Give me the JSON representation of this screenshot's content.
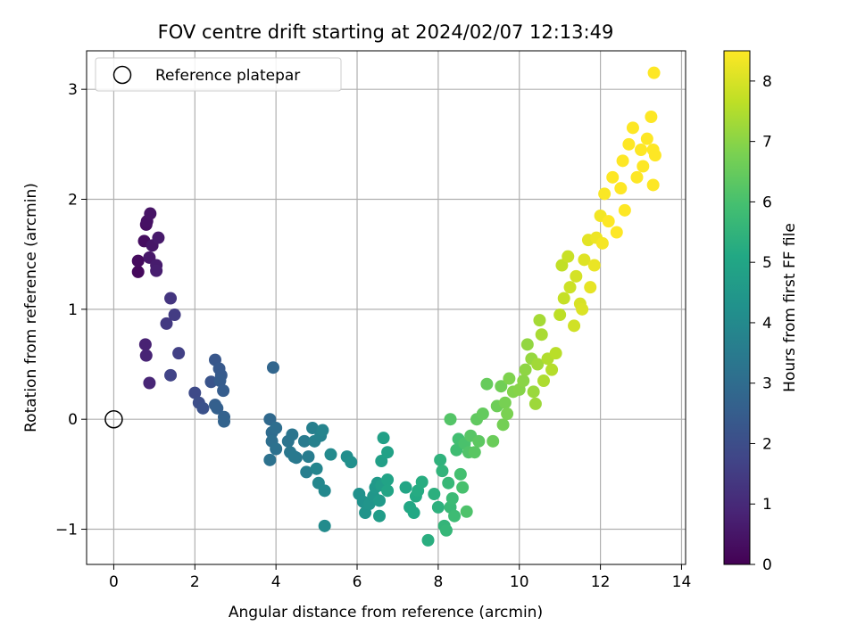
{
  "chart_data": {
    "type": "scatter",
    "title": "FOV centre drift starting at 2024/02/07 12:13:49",
    "xlabel": "Angular distance from reference (arcmin)",
    "ylabel": "Rotation from reference (arcmin)",
    "xlim": [
      -0.67,
      14.1
    ],
    "ylim": [
      -1.32,
      3.35
    ],
    "xticks": [
      0,
      2,
      4,
      6,
      8,
      10,
      12,
      14
    ],
    "yticks": [
      -1,
      0,
      1,
      2,
      3
    ],
    "xtick_labels": [
      "0",
      "2",
      "4",
      "6",
      "8",
      "10",
      "12",
      "14"
    ],
    "ytick_labels": [
      "−1",
      "0",
      "1",
      "2",
      "3"
    ],
    "grid": true,
    "legend": {
      "position": "top-left",
      "entries": [
        "Reference platepar"
      ]
    },
    "colorbar": {
      "label": "Hours from first FF file",
      "range": [
        0,
        8.5
      ],
      "ticks": [
        0,
        1,
        2,
        3,
        4,
        5,
        6,
        7,
        8
      ],
      "tick_labels": [
        "0",
        "1",
        "2",
        "3",
        "4",
        "5",
        "6",
        "7",
        "8"
      ],
      "colormap": "viridis"
    },
    "reference_point": {
      "x": 0,
      "y": 0
    },
    "series": [
      {
        "points": [
          [
            0.6,
            1.34,
            0.2
          ],
          [
            0.6,
            1.44,
            0.25
          ],
          [
            0.75,
            1.62,
            0.3
          ],
          [
            0.8,
            1.77,
            0.35
          ],
          [
            0.82,
            1.8,
            0.4
          ],
          [
            0.9,
            1.87,
            0.45
          ],
          [
            0.95,
            1.58,
            0.5
          ],
          [
            0.88,
            1.47,
            0.55
          ],
          [
            1.1,
            1.65,
            0.6
          ],
          [
            1.05,
            1.4,
            0.65
          ],
          [
            1.05,
            1.35,
            0.7
          ],
          [
            0.78,
            0.68,
            0.8
          ],
          [
            0.8,
            0.58,
            0.85
          ],
          [
            0.88,
            0.33,
            0.9
          ],
          [
            1.4,
            1.1,
            1.3
          ],
          [
            1.3,
            0.87,
            1.4
          ],
          [
            1.5,
            0.95,
            1.5
          ],
          [
            1.6,
            0.6,
            1.6
          ],
          [
            1.4,
            0.4,
            1.7
          ],
          [
            2.0,
            0.24,
            1.9
          ],
          [
            2.1,
            0.15,
            2.0
          ],
          [
            2.2,
            0.1,
            2.1
          ],
          [
            2.4,
            0.34,
            2.2
          ],
          [
            2.5,
            0.54,
            2.3
          ],
          [
            2.6,
            0.46,
            2.35
          ],
          [
            2.65,
            0.4,
            2.4
          ],
          [
            2.62,
            0.35,
            2.45
          ],
          [
            2.7,
            0.26,
            2.5
          ],
          [
            2.5,
            0.13,
            2.55
          ],
          [
            2.55,
            0.1,
            2.6
          ],
          [
            2.72,
            0.02,
            2.65
          ],
          [
            2.72,
            -0.02,
            2.7
          ],
          [
            3.93,
            0.47,
            2.8
          ],
          [
            3.85,
            0.0,
            2.9
          ],
          [
            3.9,
            -0.12,
            3.0
          ],
          [
            4.0,
            -0.08,
            3.05
          ],
          [
            3.9,
            -0.2,
            3.1
          ],
          [
            4.0,
            -0.27,
            3.15
          ],
          [
            3.85,
            -0.37,
            3.2
          ],
          [
            4.3,
            -0.2,
            3.25
          ],
          [
            4.4,
            -0.14,
            3.3
          ],
          [
            4.35,
            -0.3,
            3.35
          ],
          [
            4.5,
            -0.35,
            3.4
          ],
          [
            4.45,
            -0.34,
            3.45
          ],
          [
            4.7,
            -0.2,
            3.5
          ],
          [
            4.8,
            -0.34,
            3.55
          ],
          [
            4.75,
            -0.48,
            3.6
          ],
          [
            4.9,
            -0.08,
            3.65
          ],
          [
            4.95,
            -0.2,
            3.7
          ],
          [
            5.1,
            -0.15,
            3.75
          ],
          [
            5.15,
            -0.1,
            3.8
          ],
          [
            5.0,
            -0.45,
            3.85
          ],
          [
            5.05,
            -0.58,
            3.9
          ],
          [
            5.2,
            -0.65,
            3.95
          ],
          [
            5.35,
            -0.32,
            4.0
          ],
          [
            5.2,
            -0.97,
            4.05
          ],
          [
            5.75,
            -0.34,
            4.15
          ],
          [
            5.85,
            -0.39,
            4.2
          ],
          [
            6.05,
            -0.68,
            4.25
          ],
          [
            6.15,
            -0.75,
            4.3
          ],
          [
            6.2,
            -0.85,
            4.35
          ],
          [
            6.3,
            -0.77,
            4.4
          ],
          [
            6.4,
            -0.7,
            4.45
          ],
          [
            6.45,
            -0.62,
            4.5
          ],
          [
            6.5,
            -0.58,
            4.55
          ],
          [
            6.55,
            -0.74,
            4.6
          ],
          [
            6.55,
            -0.88,
            4.65
          ],
          [
            6.6,
            -0.6,
            4.7
          ],
          [
            6.6,
            -0.38,
            4.75
          ],
          [
            6.65,
            -0.17,
            4.8
          ],
          [
            6.75,
            -0.3,
            4.85
          ],
          [
            6.75,
            -0.55,
            4.9
          ],
          [
            6.75,
            -0.65,
            4.95
          ],
          [
            7.2,
            -0.62,
            5.0
          ],
          [
            7.3,
            -0.8,
            5.05
          ],
          [
            7.4,
            -0.85,
            5.1
          ],
          [
            7.45,
            -0.7,
            5.15
          ],
          [
            7.5,
            -0.65,
            5.2
          ],
          [
            7.6,
            -0.57,
            5.25
          ],
          [
            7.75,
            -1.1,
            5.3
          ],
          [
            7.9,
            -0.68,
            5.35
          ],
          [
            8.0,
            -0.8,
            5.4
          ],
          [
            8.05,
            -0.37,
            5.45
          ],
          [
            8.1,
            -0.47,
            5.5
          ],
          [
            8.15,
            -0.97,
            5.55
          ],
          [
            8.2,
            -1.01,
            5.6
          ],
          [
            8.25,
            -0.58,
            5.65
          ],
          [
            8.3,
            -0.8,
            5.7
          ],
          [
            8.35,
            -0.72,
            5.75
          ],
          [
            8.4,
            -0.88,
            5.8
          ],
          [
            8.45,
            -0.28,
            5.85
          ],
          [
            8.5,
            -0.18,
            5.9
          ],
          [
            8.55,
            -0.5,
            5.95
          ],
          [
            8.6,
            -0.62,
            6.0
          ],
          [
            8.65,
            -0.22,
            6.05
          ],
          [
            8.7,
            -0.84,
            6.1
          ],
          [
            8.75,
            -0.3,
            6.15
          ],
          [
            8.3,
            0.0,
            6.2
          ],
          [
            8.8,
            -0.15,
            6.25
          ],
          [
            8.9,
            -0.3,
            6.3
          ],
          [
            9.0,
            -0.2,
            6.35
          ],
          [
            8.95,
            0.0,
            6.4
          ],
          [
            9.1,
            0.05,
            6.45
          ],
          [
            9.2,
            0.32,
            6.5
          ],
          [
            9.35,
            -0.2,
            6.55
          ],
          [
            9.45,
            0.12,
            6.6
          ],
          [
            9.55,
            0.3,
            6.65
          ],
          [
            9.6,
            -0.05,
            6.7
          ],
          [
            9.65,
            0.15,
            6.75
          ],
          [
            9.7,
            0.05,
            6.8
          ],
          [
            9.75,
            0.37,
            6.85
          ],
          [
            9.85,
            0.25,
            6.9
          ],
          [
            10.0,
            0.27,
            6.95
          ],
          [
            10.1,
            0.35,
            7.0
          ],
          [
            10.15,
            0.45,
            7.05
          ],
          [
            10.2,
            0.68,
            7.1
          ],
          [
            10.3,
            0.55,
            7.15
          ],
          [
            10.35,
            0.25,
            7.2
          ],
          [
            10.4,
            0.14,
            7.25
          ],
          [
            10.45,
            0.5,
            7.3
          ],
          [
            10.5,
            0.9,
            7.35
          ],
          [
            10.55,
            0.77,
            7.4
          ],
          [
            10.6,
            0.35,
            7.45
          ],
          [
            10.7,
            0.55,
            7.5
          ],
          [
            10.8,
            0.45,
            7.55
          ],
          [
            10.9,
            0.6,
            7.6
          ],
          [
            11.0,
            0.95,
            7.65
          ],
          [
            11.05,
            1.4,
            7.7
          ],
          [
            11.1,
            1.1,
            7.75
          ],
          [
            11.2,
            1.48,
            7.8
          ],
          [
            11.25,
            1.2,
            7.85
          ],
          [
            11.35,
            0.85,
            7.9
          ],
          [
            11.4,
            1.3,
            7.95
          ],
          [
            11.5,
            1.05,
            8.0
          ],
          [
            11.55,
            1.0,
            8.05
          ],
          [
            11.6,
            1.45,
            8.1
          ],
          [
            11.7,
            1.63,
            8.15
          ],
          [
            11.75,
            1.2,
            8.2
          ],
          [
            11.85,
            1.4,
            8.25
          ],
          [
            11.9,
            1.65,
            8.3
          ],
          [
            12.0,
            1.85,
            8.35
          ],
          [
            12.05,
            1.6,
            8.4
          ],
          [
            12.1,
            2.05,
            8.45
          ],
          [
            12.2,
            1.8,
            8.5
          ],
          [
            12.3,
            2.2,
            8.5
          ],
          [
            12.4,
            1.7,
            8.5
          ],
          [
            12.5,
            2.1,
            8.5
          ],
          [
            12.55,
            2.35,
            8.5
          ],
          [
            12.6,
            1.9,
            8.5
          ],
          [
            12.7,
            2.5,
            8.5
          ],
          [
            12.8,
            2.65,
            8.5
          ],
          [
            12.9,
            2.2,
            8.5
          ],
          [
            13.0,
            2.45,
            8.5
          ],
          [
            13.05,
            2.3,
            8.5
          ],
          [
            13.15,
            2.55,
            8.5
          ],
          [
            13.25,
            2.75,
            8.5
          ],
          [
            13.3,
            2.45,
            8.5
          ],
          [
            13.35,
            2.4,
            8.5
          ],
          [
            13.3,
            2.13,
            8.5
          ],
          [
            13.32,
            3.15,
            8.5
          ]
        ]
      }
    ]
  }
}
